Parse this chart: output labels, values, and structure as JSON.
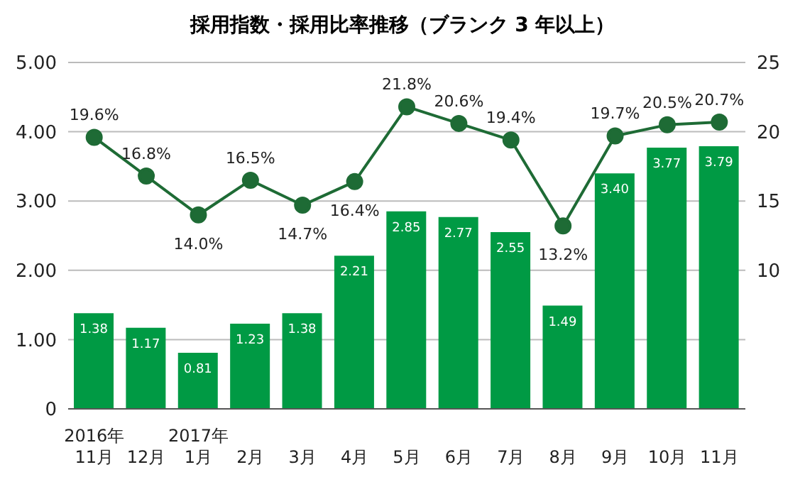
{
  "chart_data": {
    "type": "bar",
    "title": "採用指数・採用比率推移（ブランク 3 年以上）",
    "categories": [
      "2016年\n11月",
      "12月",
      "2017年\n1月",
      "2月",
      "3月",
      "4月",
      "5月",
      "6月",
      "7月",
      "8月",
      "9月",
      "10月",
      "11月"
    ],
    "series": [
      {
        "color": "#009a44",
        "values": [
          1.38,
          1.17,
          0.81,
          1.23,
          1.38,
          2.21,
          2.85,
          2.77,
          2.55,
          1.49,
          3.4,
          3.77,
          3.79
        ],
        "value_labels": [
          "1.38",
          "1.17",
          "0.81",
          "1.23",
          "1.38",
          "2.21",
          "2.85",
          "2.77",
          "2.55",
          "1.49",
          "3.40",
          "3.77",
          "3.79"
        ]
      },
      {
        "type": "line",
        "axis": "y2",
        "color": "#1e6b35",
        "marker": "circle",
        "values": [
          19.6,
          16.8,
          14.0,
          16.5,
          14.7,
          16.4,
          21.8,
          20.6,
          19.4,
          13.2,
          19.7,
          20.5,
          20.7
        ],
        "value_labels": [
          "19.6%",
          "16.8%",
          "14.0%",
          "16.5%",
          "14.7%",
          "16.4%",
          "21.8%",
          "20.6%",
          "19.4%",
          "13.2%",
          "19.7%",
          "20.5%",
          "20.7%"
        ]
      }
    ],
    "ylim": [
      0,
      5
    ],
    "yticks": [
      {
        "value": 0,
        "label": "0"
      },
      {
        "value": 1,
        "label": "1.00"
      },
      {
        "value": 2,
        "label": "2.00"
      },
      {
        "value": 3,
        "label": "3.00"
      },
      {
        "value": 4,
        "label": "4.00"
      },
      {
        "value": 5,
        "label": "5.00"
      }
    ],
    "y2lim": [
      0,
      25
    ],
    "y2ticks": [
      10,
      15,
      20,
      25
    ],
    "grid": "y"
  }
}
